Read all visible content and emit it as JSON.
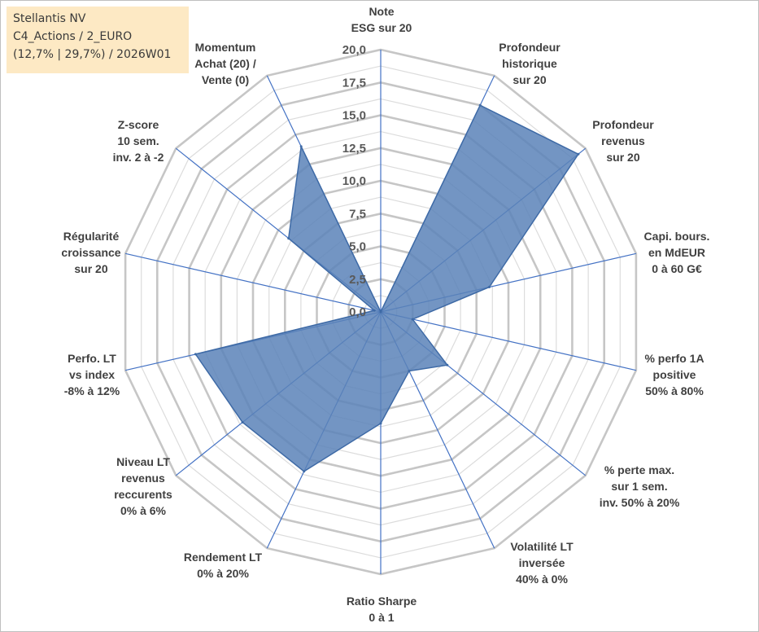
{
  "header": {
    "line1": "Stellantis NV",
    "line2": "C4_Actions / 2_EURO",
    "line3": "(12,7% | 29,7%) / 2026W01"
  },
  "colors": {
    "fill": "#5a82b8",
    "spoke": "#4472c4",
    "grid": "#c6c6c6",
    "header_bg": "#fde9c4"
  },
  "chart_data": {
    "type": "radar",
    "title": "Stellantis NV",
    "range": [
      0,
      20
    ],
    "ticks": [
      "0,0",
      "2,5",
      "5,0",
      "7,5",
      "10,0",
      "12,5",
      "15,0",
      "17,5",
      "20,0"
    ],
    "tick_values": [
      0,
      2.5,
      5,
      7.5,
      10,
      12.5,
      15,
      17.5,
      20
    ],
    "axes": [
      {
        "label": [
          "Note",
          "ESG sur 20"
        ],
        "value": 0
      },
      {
        "label": [
          "Profondeur",
          "historique",
          "sur 20"
        ],
        "value": 17.5
      },
      {
        "label": [
          "Profondeur",
          "revenus",
          "sur 20"
        ],
        "value": 19.3
      },
      {
        "label": [
          "Capi. bours.",
          "en MdEUR",
          "0 à 60 G€"
        ],
        "value": 8.5
      },
      {
        "label": [
          "% perfo 1A",
          "positive",
          "50% à 80%"
        ],
        "value": 2.5
      },
      {
        "label": [
          "% perte max.",
          "sur 1 sem.",
          "inv. 50% à 20%"
        ],
        "value": 6.5
      },
      {
        "label": [
          "Volatilité LT",
          "inversée",
          "40% à 0%"
        ],
        "value": 5.0
      },
      {
        "label": [
          "Ratio Sharpe",
          "0 à 1"
        ],
        "value": 8.5
      },
      {
        "label": [
          "Rendement LT",
          "0% à 20%"
        ],
        "value": 13.5
      },
      {
        "label": [
          "Niveau LT",
          "revenus",
          "reccurents",
          "0% à 6%"
        ],
        "value": 13.5
      },
      {
        "label": [
          "Perfo. LT",
          "vs index",
          "-8% à 12%"
        ],
        "value": 14.5
      },
      {
        "label": [
          "Régularité",
          "croissance",
          "sur 20"
        ],
        "value": 0.5
      },
      {
        "label": [
          "Z-score",
          "10 sem.",
          "inv. 2 à -2"
        ],
        "value": 9.0
      },
      {
        "label": [
          "Momentum",
          "Achat (20) /",
          "Vente (0)"
        ],
        "value": 14.0
      }
    ]
  }
}
